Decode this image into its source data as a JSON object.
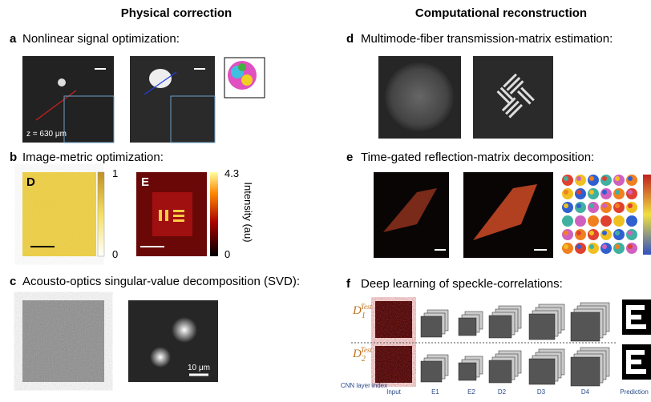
{
  "headers": {
    "left": "Physical correction",
    "right": "Computational reconstruction"
  },
  "panels": {
    "a": {
      "letter": "a",
      "title": "Nonlinear signal optimization:",
      "depth": "z = 630 μm"
    },
    "b": {
      "letter": "b",
      "title": "Image-metric optimization:",
      "map1": "D",
      "map1_max": "1",
      "map1_min": "0",
      "map2": "E",
      "map2_max": "4.3",
      "map2_min": "0",
      "colorbar_label": "Intensity (au)"
    },
    "c": {
      "letter": "c",
      "title": "Acousto-optics singular-value decomposition (SVD):",
      "scale": "10 μm"
    },
    "d": {
      "letter": "d",
      "title": "Multimode-fiber transmission-matrix estimation:"
    },
    "e": {
      "letter": "e",
      "title": "Time-gated reflection-matrix decomposition:"
    },
    "f": {
      "letter": "f",
      "title": "Deep learning of speckle-correlations:",
      "rows": [
        {
          "base": "D",
          "sub": "1",
          "sup": "Test"
        },
        {
          "base": "D",
          "sub": "2",
          "sup": "Test"
        }
      ],
      "columns": [
        "CNN layer index",
        "Input",
        "E1",
        "E2",
        "D2",
        "D3",
        "D4",
        "Prediction"
      ]
    }
  }
}
